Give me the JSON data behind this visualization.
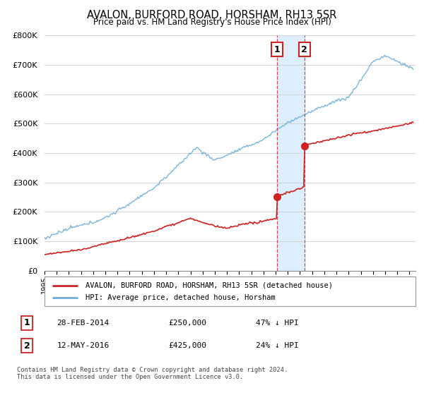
{
  "title": "AVALON, BURFORD ROAD, HORSHAM, RH13 5SR",
  "subtitle": "Price paid vs. HM Land Registry's House Price Index (HPI)",
  "ylim": [
    0,
    800000
  ],
  "yticks": [
    0,
    100000,
    200000,
    300000,
    400000,
    500000,
    600000,
    700000,
    800000
  ],
  "ytick_labels": [
    "£0",
    "£100K",
    "£200K",
    "£300K",
    "£400K",
    "£500K",
    "£600K",
    "£700K",
    "£800K"
  ],
  "hpi_color": "#6baed6",
  "price_color": "#cc2222",
  "shade_color": "#ddeeff",
  "transaction1_year": 2014.12,
  "transaction1_price": 250000,
  "transaction2_year": 2016.37,
  "transaction2_price": 425000,
  "legend_label1": "AVALON, BURFORD ROAD, HORSHAM, RH13 5SR (detached house)",
  "legend_label2": "HPI: Average price, detached house, Horsham",
  "table_row1": [
    "1",
    "28-FEB-2014",
    "£250,000",
    "47% ↓ HPI"
  ],
  "table_row2": [
    "2",
    "12-MAY-2016",
    "£425,000",
    "24% ↓ HPI"
  ],
  "footer": "Contains HM Land Registry data © Crown copyright and database right 2024.\nThis data is licensed under the Open Government Licence v3.0.",
  "grid_color": "#cccccc",
  "xlim_left": 1995.0,
  "xlim_right": 2025.5
}
